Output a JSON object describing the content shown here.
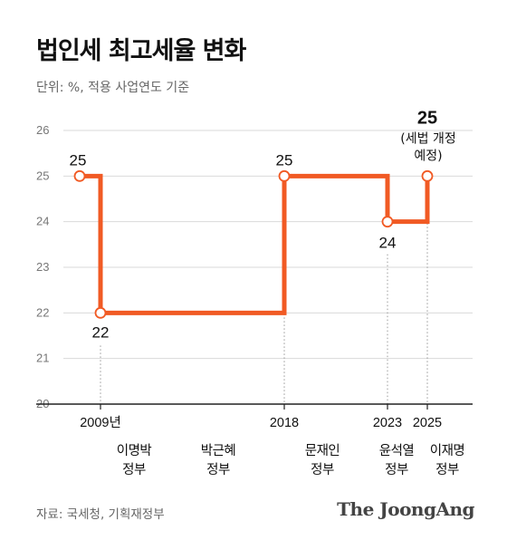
{
  "title": "법인세 최고세율 변화",
  "subtitle": "단위: %, 적용 사업연도 기준",
  "source": "자료: 국세청, 기획재정부",
  "brand": "The JoongAng",
  "colors": {
    "line": "#f15a24",
    "grid": "#d9d9d9",
    "text": "#111111",
    "muted": "#777777"
  },
  "chart_data": {
    "type": "line",
    "step": true,
    "ylim": [
      20,
      26
    ],
    "y_ticks": [
      "20",
      "21",
      "22",
      "23",
      "24",
      "25",
      "26"
    ],
    "x_ticks": [
      "2009년",
      "2018",
      "2023",
      "2025"
    ],
    "points": [
      {
        "label": "25",
        "value": 25
      },
      {
        "label": "22",
        "value": 22
      },
      {
        "label": "25",
        "value": 25
      },
      {
        "label": "24",
        "value": 24
      },
      {
        "label": "25",
        "value": 25
      }
    ],
    "annotation_lines": [
      "(세법 개정",
      "예정)"
    ]
  },
  "governments": [
    {
      "line1": "이명박",
      "line2": "정부"
    },
    {
      "line1": "박근혜",
      "line2": "정부"
    },
    {
      "line1": "문재인",
      "line2": "정부"
    },
    {
      "line1": "윤석열",
      "line2": "정부"
    },
    {
      "line1": "이재명",
      "line2": "정부"
    }
  ]
}
